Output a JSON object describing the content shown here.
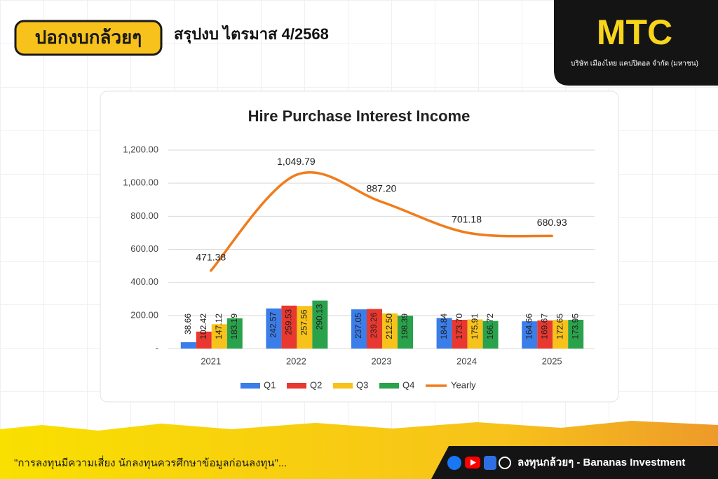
{
  "header": {
    "logo": "ปอกงบกล้วยๆ",
    "title": "สรุปงบ ไตรมาส 4/2568"
  },
  "brand": {
    "name": "MTC",
    "company": "บริษัท เมืองไทย แคปปิตอล จำกัด (มหาชน)"
  },
  "footer": {
    "disclaimer": "\"การลงทุนมีความเสี่ยง นักลงทุนควรศึกษาข้อมูลก่อนลงทุน\"...",
    "channel": "ลงทุนกล้วยๆ - Bananas Investment"
  },
  "chart_data": {
    "type": "bar",
    "title": "Hire Purchase Interest Income",
    "categories": [
      "2021",
      "2022",
      "2023",
      "2024",
      "2025"
    ],
    "series": [
      {
        "name": "Q1",
        "color": "#3b7de9",
        "values": [
          38.66,
          242.57,
          237.05,
          184.84,
          164.66
        ],
        "value_labels": [
          "38.66",
          "242.57",
          "237.05",
          "184.84",
          "164.66"
        ]
      },
      {
        "name": "Q2",
        "color": "#e8382f",
        "values": [
          102.42,
          259.53,
          239.26,
          173.7,
          169.67
        ],
        "value_labels": [
          "102.42",
          "259.53",
          "239.26",
          "173.70",
          "169.67"
        ]
      },
      {
        "name": "Q3",
        "color": "#f7c21b",
        "values": [
          147.12,
          257.56,
          212.5,
          175.91,
          172.65
        ],
        "value_labels": [
          "147.12",
          "257.56",
          "212.50",
          "175.91",
          "172.65"
        ]
      },
      {
        "name": "Q4",
        "color": "#2aa24c",
        "values": [
          183.19,
          290.13,
          198.39,
          166.72,
          173.95
        ],
        "value_labels": [
          "183.19",
          "290.13",
          "198.39",
          "166.72",
          "173.95"
        ]
      },
      {
        "name": "Yearly",
        "type": "line",
        "color": "#f07c1c",
        "values": [
          471.38,
          1049.79,
          887.2,
          701.18,
          680.93
        ],
        "value_labels": [
          "471.38",
          "1,049.79",
          "887.20",
          "701.18",
          "680.93"
        ]
      }
    ],
    "ylim": [
      0,
      1200
    ],
    "yticks": [
      {
        "value": 0,
        "label": "-"
      },
      {
        "value": 200,
        "label": "200.00"
      },
      {
        "value": 400,
        "label": "400.00"
      },
      {
        "value": 600,
        "label": "600.00"
      },
      {
        "value": 800,
        "label": "800.00"
      },
      {
        "value": 1000,
        "label": "1,000.00"
      },
      {
        "value": 1200,
        "label": "1,200.00"
      }
    ],
    "grid": true,
    "legend": "bottom"
  }
}
